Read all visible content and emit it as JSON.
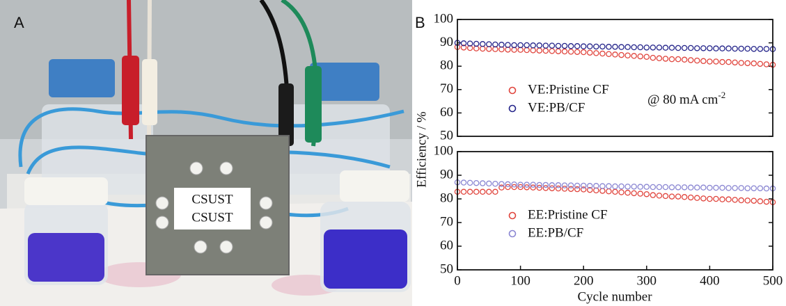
{
  "photo": {
    "label": "A",
    "box_texts": [
      "CSUST",
      "CSUST"
    ]
  },
  "panel_label": "B",
  "ylabel": "Efficiency / %",
  "xlabel": "Cycle number",
  "chart_data": [
    {
      "type": "scatter",
      "annotation": {
        "text": "@ 80 mA cm",
        "sup": "-2"
      },
      "x": [
        0,
        10,
        20,
        30,
        40,
        50,
        60,
        70,
        80,
        90,
        100,
        110,
        120,
        130,
        140,
        150,
        160,
        170,
        180,
        190,
        200,
        210,
        220,
        230,
        240,
        250,
        260,
        270,
        280,
        290,
        300,
        310,
        320,
        330,
        340,
        350,
        360,
        370,
        380,
        390,
        400,
        410,
        420,
        430,
        440,
        450,
        460,
        470,
        480,
        490,
        500
      ],
      "xlim": [
        0,
        500
      ],
      "ylim": [
        50,
        100
      ],
      "yticks": [
        50,
        60,
        70,
        80,
        90,
        100
      ],
      "series": [
        {
          "name": "VE:Pristine CF",
          "color": "#e0443c",
          "values": [
            88.2,
            88,
            87.8,
            87.6,
            87.5,
            87.4,
            87.3,
            87.2,
            87.1,
            87,
            87,
            86.9,
            86.8,
            86.7,
            86.6,
            86.5,
            86.4,
            86.3,
            86.2,
            86.1,
            86,
            85.8,
            85.6,
            85.4,
            85.2,
            85,
            84.8,
            84.6,
            84.4,
            84.2,
            84,
            83.6,
            83.4,
            83.2,
            83,
            83,
            82.8,
            82.6,
            82.4,
            82.2,
            82,
            82,
            81.8,
            81.8,
            81.6,
            81.4,
            81.3,
            81.2,
            81,
            80.8,
            80.6
          ]
        },
        {
          "name": "VE:PB/CF",
          "color": "#24248a",
          "values": [
            90,
            89.8,
            89.7,
            89.6,
            89.5,
            89.4,
            89.3,
            89.2,
            89.1,
            89,
            89,
            89,
            88.9,
            88.9,
            88.8,
            88.8,
            88.7,
            88.7,
            88.6,
            88.6,
            88.5,
            88.5,
            88.4,
            88.4,
            88.3,
            88.3,
            88.2,
            88.2,
            88.1,
            88.1,
            88,
            88,
            88,
            87.9,
            87.9,
            87.8,
            87.8,
            87.8,
            87.7,
            87.7,
            87.7,
            87.6,
            87.6,
            87.6,
            87.5,
            87.5,
            87.5,
            87.4,
            87.4,
            87.4,
            87.3
          ]
        }
      ]
    },
    {
      "type": "scatter",
      "x": [
        0,
        10,
        20,
        30,
        40,
        50,
        60,
        70,
        80,
        90,
        100,
        110,
        120,
        130,
        140,
        150,
        160,
        170,
        180,
        190,
        200,
        210,
        220,
        230,
        240,
        250,
        260,
        270,
        280,
        290,
        300,
        310,
        320,
        330,
        340,
        350,
        360,
        370,
        380,
        390,
        400,
        410,
        420,
        430,
        440,
        450,
        460,
        470,
        480,
        490,
        500
      ],
      "xlim": [
        0,
        500
      ],
      "xticks": [
        0,
        100,
        200,
        300,
        400,
        500
      ],
      "ylim": [
        50,
        100
      ],
      "yticks": [
        50,
        60,
        70,
        80,
        90,
        100
      ],
      "series": [
        {
          "name": "EE:Pristine CF",
          "color": "#e0443c",
          "values": [
            83,
            83,
            83,
            83,
            83,
            83,
            83,
            84.8,
            85,
            85,
            85,
            84.9,
            84.8,
            84.7,
            84.6,
            84.5,
            84.4,
            84.3,
            84.2,
            84.1,
            84,
            83.8,
            83.6,
            83.4,
            83.2,
            83,
            82.8,
            82.6,
            82.4,
            82.2,
            82,
            81.6,
            81.4,
            81.2,
            81,
            81,
            80.8,
            80.6,
            80.4,
            80.2,
            80,
            80,
            79.8,
            79.8,
            79.6,
            79.4,
            79.3,
            79.2,
            79,
            78.8,
            78.6
          ]
        },
        {
          "name": "EE:PB/CF",
          "color": "#8a86d2",
          "values": [
            87,
            86.9,
            86.8,
            86.7,
            86.6,
            86.5,
            86.4,
            86.3,
            86.2,
            86.1,
            86,
            86,
            86,
            85.9,
            85.9,
            85.8,
            85.8,
            85.7,
            85.7,
            85.6,
            85.6,
            85.5,
            85.5,
            85.4,
            85.4,
            85.3,
            85.3,
            85.2,
            85.2,
            85.1,
            85.1,
            85,
            85,
            85,
            84.9,
            84.9,
            84.9,
            84.8,
            84.8,
            84.8,
            84.7,
            84.7,
            84.7,
            84.6,
            84.6,
            84.6,
            84.5,
            84.5,
            84.5,
            84.4,
            84.4
          ]
        }
      ]
    }
  ]
}
